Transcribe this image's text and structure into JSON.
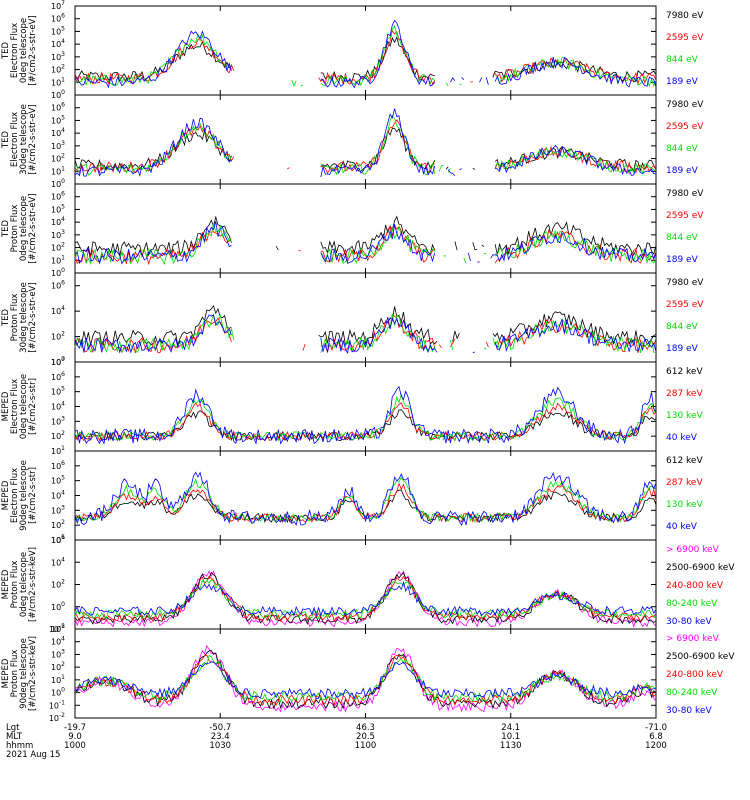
{
  "chart_data": {
    "type": "line",
    "time_axis": {
      "labels": [
        "1000",
        "1030",
        "1100",
        "1130",
        "1200"
      ],
      "lgt": [
        "-19.7",
        "-50.7",
        "46.3",
        "24.1",
        "-71.0"
      ],
      "mlt": [
        "9.0",
        "23.4",
        "20.5",
        "10.1",
        "6.8"
      ],
      "row_labels": [
        "Lgt",
        "MLT",
        "hhmm"
      ],
      "date": "2021 Aug 15"
    },
    "panels": [
      {
        "ylabel": [
          "TED",
          "Electron Flux",
          "0deg telescope",
          "[#/cm2-s-str-eV]"
        ],
        "ytick_exponents": [
          0,
          1,
          2,
          3,
          4,
          5,
          6,
          7
        ],
        "ylim_exp": [
          0,
          7
        ],
        "series": [
          {
            "name": "7980 eV",
            "color": "#000000"
          },
          {
            "name": "2595 eV",
            "color": "#ff0000"
          },
          {
            "name": "844 eV",
            "color": "#00dd00"
          },
          {
            "name": "189 eV",
            "color": "#0000ff"
          }
        ]
      },
      {
        "ylabel": [
          "TED",
          "Electron Flux",
          "30deg telescope",
          "[#/cm2-s-str-eV]"
        ],
        "ytick_exponents": [
          0,
          1,
          2,
          3,
          4,
          5,
          6
        ],
        "ylim_exp": [
          0,
          7
        ],
        "series": [
          {
            "name": "7980 eV",
            "color": "#000000"
          },
          {
            "name": "2595 eV",
            "color": "#ff0000"
          },
          {
            "name": "844 eV",
            "color": "#00dd00"
          },
          {
            "name": "189 eV",
            "color": "#0000ff"
          }
        ]
      },
      {
        "ylabel": [
          "TED",
          "Proton Flux",
          "0deg telescope",
          "[#/cm2-s-str-eV]"
        ],
        "ytick_exponents": [
          0,
          1,
          2,
          3,
          4,
          5,
          6
        ],
        "ylim_exp": [
          0,
          7
        ],
        "series": [
          {
            "name": "7980 eV",
            "color": "#000000"
          },
          {
            "name": "2595 eV",
            "color": "#ff0000"
          },
          {
            "name": "844 eV",
            "color": "#00dd00"
          },
          {
            "name": "189 eV",
            "color": "#0000ff"
          }
        ]
      },
      {
        "ylabel": [
          "TED",
          "Proton Flux",
          "30deg telescope",
          "[#/cm2-s-str-eV]"
        ],
        "ytick_exponents": [
          0,
          2,
          4,
          6
        ],
        "ylim_exp": [
          0,
          7
        ],
        "series": [
          {
            "name": "7980 eV",
            "color": "#000000"
          },
          {
            "name": "2595 eV",
            "color": "#ff0000"
          },
          {
            "name": "844 eV",
            "color": "#00dd00"
          },
          {
            "name": "189 eV",
            "color": "#0000ff"
          }
        ]
      },
      {
        "ylabel": [
          "MEPED",
          "Electron Flux",
          "0deg telescope",
          "[#/cm2-s-str]"
        ],
        "ytick_exponents": [
          1,
          2,
          3,
          4,
          5,
          6,
          7
        ],
        "ylim_exp": [
          1,
          7
        ],
        "series": [
          {
            "name": "612 keV",
            "color": "#000000"
          },
          {
            "name": "287 keV",
            "color": "#ff0000"
          },
          {
            "name": "130 keV",
            "color": "#00dd00"
          },
          {
            "name": "40 keV",
            "color": "#0000ff"
          }
        ]
      },
      {
        "ylabel": [
          "MEPED",
          "Electron Flux",
          "90deg telescope",
          "[#/cm2-s-str]"
        ],
        "ytick_exponents": [
          1,
          2,
          3,
          4,
          5,
          6
        ],
        "ylim_exp": [
          1,
          7
        ],
        "series": [
          {
            "name": "612 keV",
            "color": "#000000"
          },
          {
            "name": "287 keV",
            "color": "#ff0000"
          },
          {
            "name": "130 keV",
            "color": "#00dd00"
          },
          {
            "name": "40 keV",
            "color": "#0000ff"
          }
        ]
      },
      {
        "ylabel": [
          "MEPED",
          "Proton Flux",
          "0deg telescope",
          "[#/cm2-s-str-keV]"
        ],
        "ytick_exponents": [
          -2,
          0,
          2,
          4,
          6
        ],
        "ylim_exp": [
          -2,
          6
        ],
        "series": [
          {
            "name": "> 6900 keV",
            "color": "#ff00ff"
          },
          {
            "name": "2500-6900 keV",
            "color": "#000000"
          },
          {
            "name": "240-800 keV",
            "color": "#ff0000"
          },
          {
            "name": "80-240 keV",
            "color": "#00dd00"
          },
          {
            "name": "30-80 keV",
            "color": "#0000ff"
          }
        ]
      },
      {
        "ylabel": [
          "MEPED",
          "Proton Flux",
          "90deg telescope",
          "[#/cm2-s-str-keV]"
        ],
        "ytick_exponents": [
          -2,
          -1,
          0,
          1,
          2,
          3,
          4,
          5
        ],
        "ylim_exp": [
          -2,
          5
        ],
        "series": [
          {
            "name": "> 6900 keV",
            "color": "#ff00ff"
          },
          {
            "name": "2500-6900 keV",
            "color": "#000000"
          },
          {
            "name": "240-800 keV",
            "color": "#ff0000"
          },
          {
            "name": "80-240 keV",
            "color": "#00dd00"
          },
          {
            "name": "30-80 keV",
            "color": "#0000ff"
          }
        ]
      }
    ]
  }
}
